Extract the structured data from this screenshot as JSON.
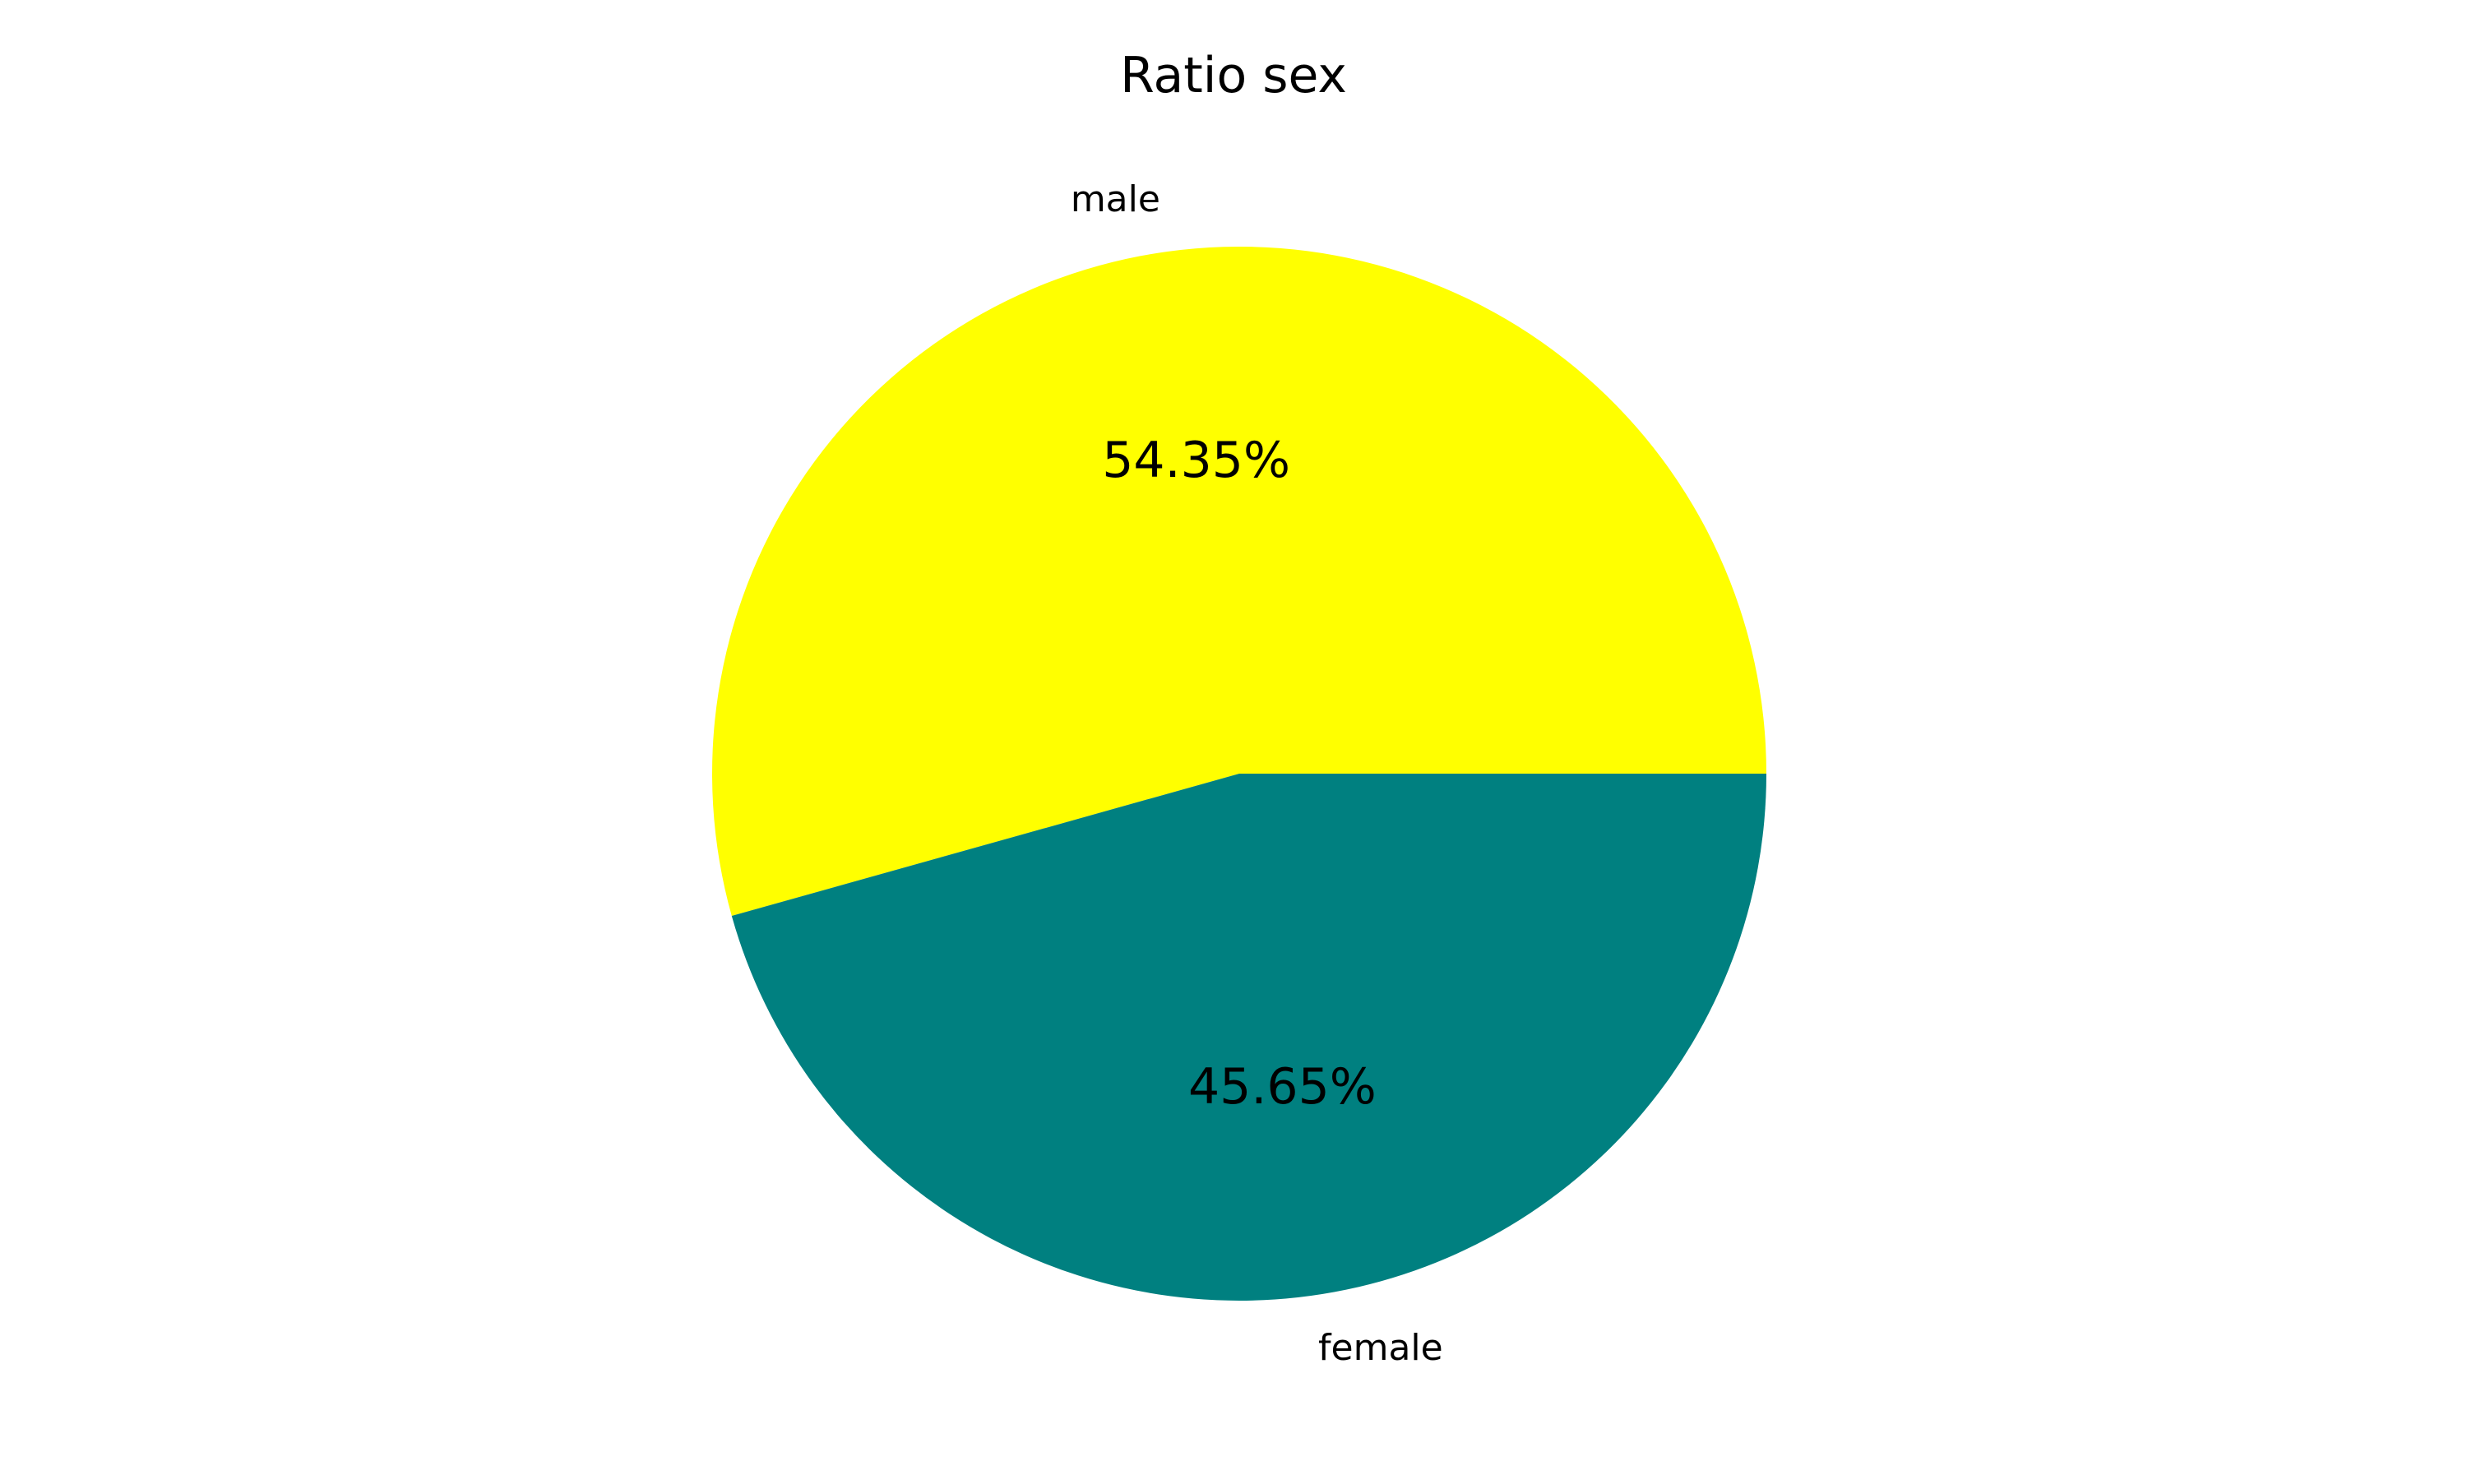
{
  "chart_data": {
    "type": "pie",
    "title": "Ratio sex",
    "start_angle_deg": 0,
    "direction": "counterclockwise",
    "slices": [
      {
        "label": "male",
        "value": 54.35,
        "value_label": "54.35%",
        "color": "#ffff00"
      },
      {
        "label": "female",
        "value": 45.65,
        "value_label": "45.65%",
        "color": "#008080"
      }
    ]
  }
}
